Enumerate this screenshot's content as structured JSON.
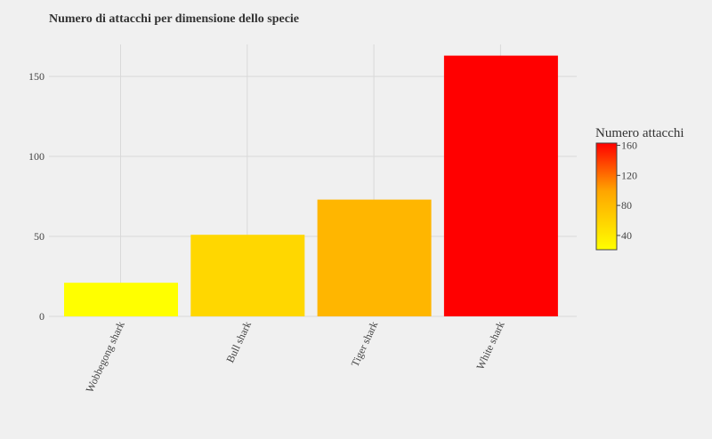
{
  "chart_data": {
    "type": "bar",
    "title": "Numero di attacchi per dimensione dello specie",
    "categories": [
      "Wobbegong shark",
      "Bull shark",
      "Tiger shark",
      "White shark"
    ],
    "values": [
      21,
      51,
      73,
      163
    ],
    "ylim": [
      0,
      170
    ],
    "yticks": [
      0,
      50,
      100,
      150
    ],
    "grid": true,
    "bar_colors": [
      "#ffff00",
      "#ffd700",
      "#ffb600",
      "#ff0000"
    ],
    "colorbar": {
      "title": "Numero attacchi",
      "range": [
        21,
        163
      ],
      "ticks": [
        40,
        80,
        120,
        160
      ],
      "colors": [
        "#ffff00",
        "#ff0000"
      ],
      "placement": "right"
    }
  }
}
